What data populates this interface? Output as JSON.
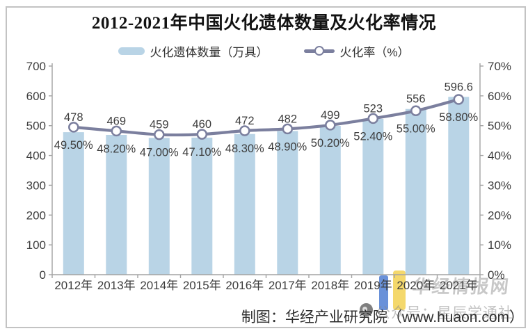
{
  "title": "2012-2021年中国火化遗体数量及火化率情况",
  "chart_data": {
    "type": "bar+line",
    "categories": [
      "2012年",
      "2013年",
      "2014年",
      "2015年",
      "2016年",
      "2017年",
      "2018年",
      "2019年",
      "2020年",
      "2021年"
    ],
    "series": [
      {
        "name": "火化遗体数量（万具）",
        "type": "bar",
        "axis": "left",
        "color": "#b9d4e6",
        "values": [
          478,
          469,
          459,
          460,
          472,
          482,
          499,
          523,
          556,
          596.6
        ],
        "labels": [
          "478",
          "469",
          "459",
          "460",
          "472",
          "482",
          "499",
          "523",
          "556",
          "596.6"
        ]
      },
      {
        "name": "火化率（%）",
        "type": "line",
        "axis": "right",
        "color": "#7b7f9e",
        "marker_fill": "#ffffff",
        "values": [
          49.5,
          48.2,
          47.0,
          47.1,
          48.3,
          48.9,
          50.2,
          52.4,
          55.0,
          58.8
        ],
        "labels": [
          "49.50%",
          "48.20%",
          "47.00%",
          "47.10%",
          "48.30%",
          "48.90%",
          "50.20%",
          "52.40%",
          "55.00%",
          "58.80%"
        ]
      }
    ],
    "left_axis": {
      "min": 0,
      "max": 700,
      "step": 100,
      "tick_labels": [
        "700",
        "600",
        "500",
        "400",
        "300",
        "200",
        "100",
        "0"
      ]
    },
    "right_axis": {
      "min": 0,
      "max": 70,
      "step": 10,
      "tick_labels": [
        "70%",
        "60%",
        "50%",
        "40%",
        "30%",
        "20%",
        "10%",
        "0%"
      ]
    },
    "grid": false,
    "legend_position": "top",
    "axis_color": "#a3a3a3",
    "label_color": "#3d3d3d"
  },
  "footer": {
    "credit": "制图：华经产业研究院（www.huaon.com）"
  },
  "watermarks": {
    "brand": "华经情报网",
    "account": "公众号：星辰学通社"
  }
}
